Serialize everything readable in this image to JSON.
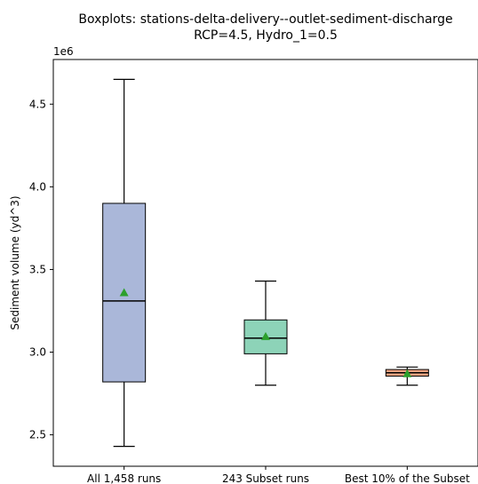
{
  "chart_data": {
    "type": "boxplot",
    "title": "Boxplots: stations-delta-delivery--outlet-sediment-discharge",
    "subtitle": "RCP=4.5, Hydro_1=0.5",
    "ylabel": "Sediment volume (yd^3)",
    "y_offset_label": "1e6",
    "ylim": [
      2.31,
      4.77
    ],
    "yticks": [
      {
        "value": 2.5,
        "label": "2.5"
      },
      {
        "value": 3.0,
        "label": "3.0"
      },
      {
        "value": 3.5,
        "label": "3.5"
      },
      {
        "value": 4.0,
        "label": "4.0"
      },
      {
        "value": 4.5,
        "label": "4.5"
      }
    ],
    "grid": false,
    "boxes": [
      {
        "label": "All 1,458 runs",
        "whisker_low": 2.43,
        "q1": 2.82,
        "median": 3.31,
        "q3": 3.9,
        "whisker_high": 4.65,
        "mean": 3.36,
        "color": "#aab7d9"
      },
      {
        "label": "243 Subset runs",
        "whisker_low": 2.8,
        "q1": 2.99,
        "median": 3.085,
        "q3": 3.195,
        "whisker_high": 3.43,
        "mean": 3.095,
        "color": "#8dd3b8"
      },
      {
        "label": "Best 10% of the Subset",
        "whisker_low": 2.8,
        "q1": 2.855,
        "median": 2.875,
        "q3": 2.895,
        "whisker_high": 2.91,
        "mean": 2.87,
        "color": "#f4a582"
      }
    ],
    "mean_marker_color": "#2ca02c"
  }
}
